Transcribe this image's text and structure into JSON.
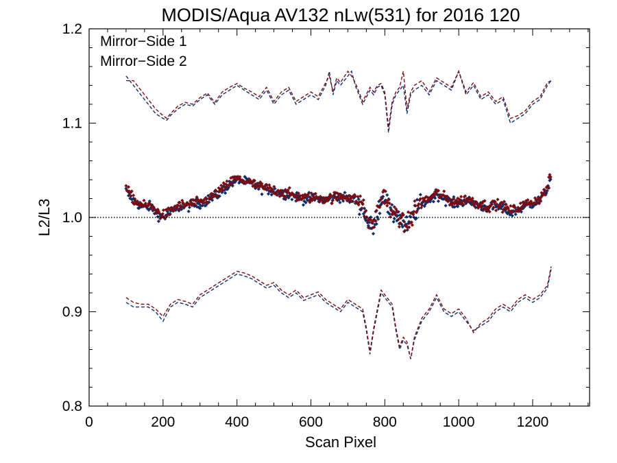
{
  "chart_data": {
    "type": "scatter",
    "title": "MODIS/Aqua AV132 nLw(531) for 2016 120",
    "xlabel": "Scan Pixel",
    "ylabel": "L2/L3",
    "xlim": [
      0,
      1354
    ],
    "ylim": [
      0.8,
      1.2
    ],
    "xticks": [
      0,
      200,
      400,
      600,
      800,
      1000,
      1200
    ],
    "xtick_labels": [
      "0",
      "200",
      "400",
      "600",
      "800",
      "1000",
      "1200"
    ],
    "yticks": [
      0.8,
      0.9,
      1.0,
      1.1,
      1.2
    ],
    "ytick_labels": [
      "0.8",
      "0.9",
      "1.0",
      "1.1",
      "1.2"
    ],
    "reference_line": 1.0,
    "legend_position": "top-left",
    "grid": false,
    "series": [
      {
        "name": "Mirror−Side 1",
        "color": "#0b2f6e",
        "mean_x": [
          100,
          110,
          120,
          130,
          140,
          150,
          160,
          170,
          180,
          190,
          200,
          210,
          220,
          230,
          240,
          250,
          260,
          270,
          280,
          290,
          300,
          320,
          340,
          360,
          380,
          400,
          420,
          440,
          460,
          480,
          500,
          520,
          540,
          560,
          580,
          600,
          620,
          640,
          660,
          680,
          700,
          720,
          740,
          750,
          760,
          770,
          780,
          790,
          800,
          810,
          820,
          830,
          840,
          850,
          860,
          870,
          880,
          890,
          900,
          920,
          940,
          960,
          980,
          1000,
          1020,
          1040,
          1060,
          1080,
          1100,
          1120,
          1140,
          1160,
          1180,
          1200,
          1220,
          1240,
          1250
        ],
        "mean_y": [
          1.028,
          1.022,
          1.018,
          1.015,
          1.012,
          1.01,
          1.012,
          1.01,
          1.006,
          1.002,
          1.0,
          1.002,
          1.005,
          1.008,
          1.01,
          1.012,
          1.012,
          1.012,
          1.013,
          1.014,
          1.015,
          1.018,
          1.022,
          1.028,
          1.035,
          1.04,
          1.038,
          1.035,
          1.032,
          1.03,
          1.028,
          1.026,
          1.024,
          1.022,
          1.02,
          1.02,
          1.02,
          1.018,
          1.02,
          1.022,
          1.02,
          1.018,
          1.012,
          1.0,
          0.99,
          0.99,
          1.005,
          1.018,
          1.025,
          1.01,
          1.0,
          1.005,
          1.0,
          0.99,
          0.99,
          0.995,
          1.005,
          1.01,
          1.015,
          1.018,
          1.025,
          1.02,
          1.015,
          1.015,
          1.018,
          1.015,
          1.012,
          1.01,
          1.012,
          1.01,
          1.005,
          1.008,
          1.012,
          1.015,
          1.018,
          1.03,
          1.045
        ],
        "upper_x": [
          100,
          120,
          140,
          160,
          180,
          200,
          210,
          220,
          240,
          260,
          280,
          300,
          320,
          340,
          360,
          380,
          400,
          420,
          440,
          460,
          480,
          500,
          520,
          540,
          560,
          580,
          600,
          620,
          640,
          650,
          660,
          670,
          680,
          700,
          710,
          720,
          740,
          760,
          770,
          780,
          790,
          800,
          810,
          820,
          830,
          840,
          850,
          860,
          870,
          880,
          900,
          920,
          940,
          960,
          980,
          1000,
          1020,
          1040,
          1060,
          1080,
          1100,
          1120,
          1140,
          1160,
          1180,
          1200,
          1220,
          1240,
          1250
        ],
        "upper_y": [
          1.15,
          1.14,
          1.13,
          1.12,
          1.11,
          1.105,
          1.103,
          1.108,
          1.115,
          1.12,
          1.118,
          1.125,
          1.13,
          1.12,
          1.13,
          1.135,
          1.14,
          1.135,
          1.13,
          1.125,
          1.135,
          1.12,
          1.13,
          1.135,
          1.12,
          1.125,
          1.13,
          1.125,
          1.14,
          1.155,
          1.13,
          1.145,
          1.14,
          1.15,
          1.155,
          1.14,
          1.12,
          1.135,
          1.13,
          1.138,
          1.14,
          1.13,
          1.09,
          1.12,
          1.13,
          1.135,
          1.14,
          1.11,
          1.13,
          1.135,
          1.14,
          1.13,
          1.145,
          1.14,
          1.135,
          1.155,
          1.13,
          1.14,
          1.125,
          1.13,
          1.12,
          1.125,
          1.1,
          1.105,
          1.11,
          1.12,
          1.125,
          1.14,
          1.145
        ],
        "lower_x": [
          100,
          120,
          140,
          160,
          180,
          200,
          220,
          240,
          260,
          280,
          300,
          320,
          340,
          360,
          380,
          400,
          420,
          440,
          460,
          480,
          500,
          520,
          540,
          560,
          580,
          600,
          620,
          640,
          660,
          680,
          700,
          720,
          740,
          750,
          760,
          770,
          780,
          790,
          800,
          810,
          820,
          830,
          840,
          850,
          860,
          870,
          880,
          890,
          900,
          920,
          940,
          960,
          980,
          1000,
          1020,
          1040,
          1060,
          1080,
          1100,
          1120,
          1140,
          1160,
          1180,
          1200,
          1220,
          1240,
          1250
        ],
        "lower_y": [
          0.91,
          0.905,
          0.905,
          0.905,
          0.9,
          0.89,
          0.905,
          0.91,
          0.908,
          0.905,
          0.915,
          0.92,
          0.925,
          0.93,
          0.935,
          0.94,
          0.938,
          0.935,
          0.93,
          0.925,
          0.928,
          0.92,
          0.915,
          0.92,
          0.912,
          0.915,
          0.918,
          0.91,
          0.905,
          0.9,
          0.91,
          0.905,
          0.9,
          0.88,
          0.855,
          0.88,
          0.9,
          0.92,
          0.915,
          0.91,
          0.905,
          0.88,
          0.86,
          0.87,
          0.865,
          0.85,
          0.87,
          0.88,
          0.89,
          0.9,
          0.915,
          0.9,
          0.895,
          0.9,
          0.89,
          0.88,
          0.885,
          0.89,
          0.9,
          0.905,
          0.9,
          0.91,
          0.915,
          0.91,
          0.915,
          0.925,
          0.945
        ]
      },
      {
        "name": "Mirror−Side 2",
        "color": "#7a0c12",
        "mean_x": [
          100,
          110,
          120,
          130,
          140,
          150,
          160,
          170,
          180,
          190,
          200,
          210,
          220,
          230,
          240,
          250,
          260,
          270,
          280,
          290,
          300,
          320,
          340,
          360,
          380,
          400,
          420,
          440,
          460,
          480,
          500,
          520,
          540,
          560,
          580,
          600,
          620,
          640,
          660,
          680,
          700,
          720,
          740,
          750,
          760,
          770,
          780,
          790,
          800,
          810,
          820,
          830,
          840,
          850,
          860,
          870,
          880,
          890,
          900,
          920,
          940,
          960,
          980,
          1000,
          1020,
          1040,
          1060,
          1080,
          1100,
          1120,
          1140,
          1160,
          1180,
          1200,
          1220,
          1240,
          1250
        ],
        "mean_y": [
          1.03,
          1.025,
          1.02,
          1.016,
          1.014,
          1.012,
          1.013,
          1.011,
          1.008,
          1.004,
          1.002,
          1.004,
          1.007,
          1.01,
          1.012,
          1.013,
          1.013,
          1.014,
          1.015,
          1.015,
          1.016,
          1.019,
          1.024,
          1.03,
          1.037,
          1.041,
          1.039,
          1.036,
          1.033,
          1.031,
          1.029,
          1.027,
          1.025,
          1.023,
          1.021,
          1.021,
          1.021,
          1.02,
          1.021,
          1.023,
          1.022,
          1.02,
          1.014,
          1.002,
          0.992,
          0.993,
          1.007,
          1.02,
          1.026,
          1.012,
          1.002,
          1.006,
          1.002,
          0.992,
          0.992,
          0.997,
          1.007,
          1.012,
          1.017,
          1.02,
          1.026,
          1.022,
          1.017,
          1.017,
          1.02,
          1.017,
          1.014,
          1.012,
          1.014,
          1.012,
          1.007,
          1.01,
          1.014,
          1.017,
          1.02,
          1.032,
          1.047
        ],
        "upper_x": [
          100,
          120,
          140,
          160,
          180,
          200,
          210,
          220,
          240,
          260,
          280,
          300,
          320,
          340,
          360,
          380,
          400,
          420,
          440,
          460,
          480,
          500,
          520,
          540,
          560,
          580,
          600,
          620,
          640,
          650,
          660,
          670,
          680,
          700,
          710,
          720,
          740,
          760,
          770,
          780,
          790,
          800,
          810,
          820,
          830,
          840,
          850,
          860,
          870,
          880,
          900,
          920,
          940,
          960,
          980,
          1000,
          1020,
          1040,
          1060,
          1080,
          1100,
          1120,
          1140,
          1160,
          1180,
          1200,
          1220,
          1240,
          1250
        ],
        "upper_y": [
          1.145,
          1.145,
          1.135,
          1.125,
          1.115,
          1.108,
          1.105,
          1.11,
          1.118,
          1.122,
          1.12,
          1.127,
          1.132,
          1.122,
          1.133,
          1.138,
          1.142,
          1.137,
          1.133,
          1.128,
          1.138,
          1.123,
          1.133,
          1.138,
          1.123,
          1.128,
          1.133,
          1.128,
          1.143,
          1.15,
          1.133,
          1.148,
          1.143,
          1.155,
          1.15,
          1.143,
          1.123,
          1.138,
          1.133,
          1.14,
          1.142,
          1.133,
          1.095,
          1.123,
          1.133,
          1.138,
          1.155,
          1.115,
          1.133,
          1.14,
          1.145,
          1.133,
          1.148,
          1.143,
          1.138,
          1.155,
          1.133,
          1.143,
          1.128,
          1.133,
          1.123,
          1.128,
          1.105,
          1.108,
          1.113,
          1.123,
          1.128,
          1.143,
          1.145
        ],
        "lower_x": [
          100,
          120,
          140,
          160,
          180,
          200,
          220,
          240,
          260,
          280,
          300,
          320,
          340,
          360,
          380,
          400,
          420,
          440,
          460,
          480,
          500,
          520,
          540,
          560,
          580,
          600,
          620,
          640,
          660,
          680,
          700,
          720,
          740,
          750,
          760,
          770,
          780,
          790,
          800,
          810,
          820,
          830,
          840,
          850,
          860,
          870,
          880,
          890,
          900,
          920,
          940,
          960,
          980,
          1000,
          1020,
          1040,
          1060,
          1080,
          1100,
          1120,
          1140,
          1160,
          1180,
          1200,
          1220,
          1240,
          1250
        ],
        "lower_y": [
          0.915,
          0.91,
          0.908,
          0.908,
          0.903,
          0.895,
          0.908,
          0.913,
          0.911,
          0.908,
          0.918,
          0.923,
          0.928,
          0.933,
          0.938,
          0.943,
          0.941,
          0.938,
          0.933,
          0.928,
          0.931,
          0.923,
          0.918,
          0.923,
          0.915,
          0.918,
          0.921,
          0.913,
          0.908,
          0.903,
          0.913,
          0.908,
          0.903,
          0.883,
          0.858,
          0.883,
          0.903,
          0.923,
          0.918,
          0.913,
          0.908,
          0.883,
          0.863,
          0.873,
          0.868,
          0.85,
          0.873,
          0.883,
          0.893,
          0.903,
          0.918,
          0.903,
          0.898,
          0.903,
          0.893,
          0.878,
          0.888,
          0.893,
          0.903,
          0.908,
          0.903,
          0.913,
          0.918,
          0.913,
          0.918,
          0.928,
          0.948
        ]
      }
    ]
  }
}
